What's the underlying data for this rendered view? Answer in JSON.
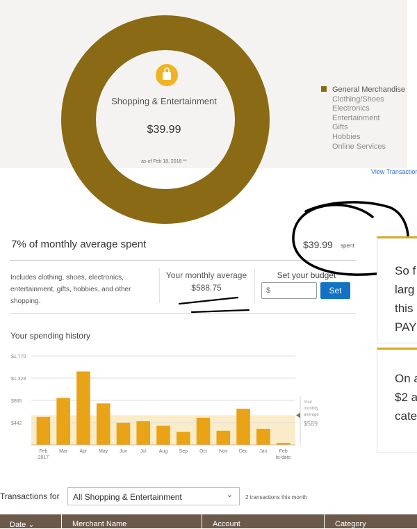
{
  "category": {
    "title": "Shopping & Entertainment",
    "amount": "$39.99",
    "as_of": "as of Feb 18, 2018 **",
    "icon": "shopping-bag-icon",
    "accent_color": "#8a6a14",
    "icon_color": "#f0b323"
  },
  "legend": {
    "items": [
      {
        "label": "General Merchandise",
        "active": true
      },
      {
        "label": "Clothing/Shoes",
        "active": false
      },
      {
        "label": "Electronics",
        "active": false
      },
      {
        "label": "Entertainment",
        "active": false
      },
      {
        "label": "Gifts",
        "active": false
      },
      {
        "label": "Hobbies",
        "active": false
      },
      {
        "label": "Online Services",
        "active": false
      }
    ],
    "view_link": "View Transaction"
  },
  "summary": {
    "pct_label": "7% of monthly average spent",
    "spent_amount": "$39.99",
    "spent_word": "spent",
    "description": "Includes clothing, shoes, electronics, entertainment, gifts, hobbies, and other shopping.",
    "avg_label": "Your monthly average",
    "avg_value": "$588.75",
    "budget_label": "Set your budget",
    "budget_placeholder": "$",
    "set_button": "Set"
  },
  "history": {
    "title": "Your spending history"
  },
  "chart_data": {
    "type": "bar",
    "categories": [
      "Feb 2017",
      "Mar",
      "Apr",
      "May",
      "Jun",
      "Jul",
      "Aug",
      "Sep",
      "Oct",
      "Nov",
      "Dec",
      "Jan",
      "Feb to-date"
    ],
    "values": [
      555,
      935,
      1460,
      825,
      440,
      470,
      380,
      260,
      540,
      280,
      720,
      320,
      40
    ],
    "yticks": [
      "$1,770",
      "$1,328",
      "$885",
      "$442"
    ],
    "ytick_values": [
      1770,
      1328,
      885,
      442
    ],
    "ylim": [
      0,
      1770
    ],
    "average": {
      "label": "Your monthly average",
      "value": 589,
      "display": "$589"
    },
    "bar_color": "#e8a317",
    "band_color": "#fbecc9",
    "grid": true
  },
  "transactions": {
    "label": "Transactions for",
    "select_value": "All Shopping & Entertainment",
    "count": "2 transactions this month",
    "columns": [
      "Date",
      "Merchant Name",
      "Account",
      "Category"
    ]
  },
  "cards": [
    {
      "lines": [
        "So f",
        "larg",
        "this",
        "PAY"
      ]
    },
    {
      "lines": [
        "On a",
        "$2 a",
        "cate"
      ]
    }
  ]
}
